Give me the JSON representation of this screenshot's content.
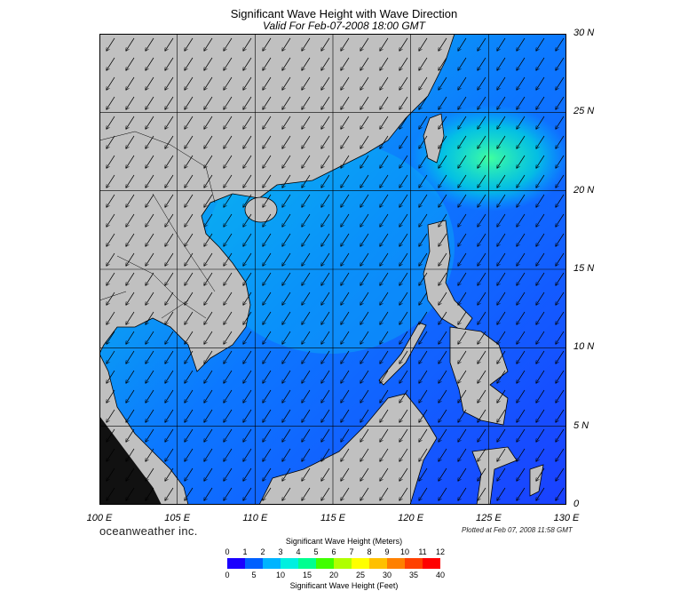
{
  "title": "Significant Wave Height with Wave Direction",
  "subtitle": "Valid For Feb-07-2008 18:00 GMT",
  "lat_labels": [
    "30 N",
    "25 N",
    "20 N",
    "15 N",
    "10 N",
    "5 N",
    "0"
  ],
  "lon_labels": [
    "100 E",
    "105 E",
    "110 E",
    "115 E",
    "120 E",
    "125 E",
    "130 E"
  ],
  "brand": "oceanweather inc.",
  "plotted": "Plotted at Feb 07, 2008 11:58 GMT",
  "colorbar": {
    "meters_title": "Significant Wave Height (Meters)",
    "feet_title": "Significant Wave Height (Feet)",
    "meters_ticks": [
      "0",
      "1",
      "2",
      "3",
      "4",
      "5",
      "6",
      "7",
      "8",
      "9",
      "10",
      "11",
      "12"
    ],
    "feet_ticks": [
      "0",
      "5",
      "10",
      "15",
      "20",
      "25",
      "30",
      "35",
      "40"
    ],
    "colors": [
      "#1a00ff",
      "#0060ff",
      "#00b4ff",
      "#00f0e0",
      "#00ff90",
      "#40ff00",
      "#b0ff00",
      "#ffff00",
      "#ffc000",
      "#ff8000",
      "#ff4000",
      "#ff0000"
    ]
  },
  "colors": {
    "land": "#c0c0c0",
    "low_sea": "#1a3cff",
    "mid_sea": "#00a0ff",
    "high_sea": "#30ffb0"
  },
  "wave_direction": "southwest"
}
